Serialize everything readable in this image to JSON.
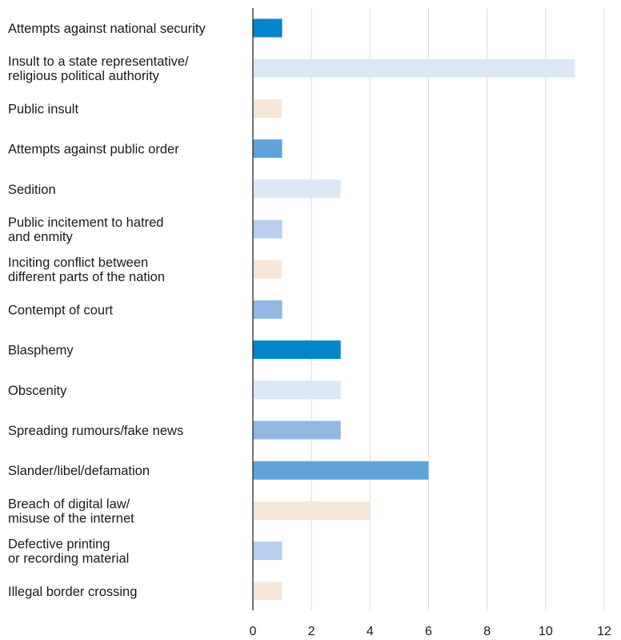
{
  "chart_data": {
    "type": "bar",
    "orientation": "horizontal",
    "title": "",
    "xlabel": "",
    "ylabel": "",
    "xlim": [
      0,
      12
    ],
    "x_ticks": [
      0,
      2,
      4,
      6,
      8,
      10,
      12
    ],
    "grid": true,
    "legend": "none",
    "categories": [
      [
        "Attempts against national security"
      ],
      [
        "Insult to a state representative/",
        "religious political authority"
      ],
      [
        "Public insult"
      ],
      [
        "Attempts against public order"
      ],
      [
        "Sedition"
      ],
      [
        "Public incitement to hatred",
        "and enmity"
      ],
      [
        "Inciting conflict between",
        "different parts of the nation"
      ],
      [
        "Contempt of court"
      ],
      [
        "Blasphemy"
      ],
      [
        "Obscenity"
      ],
      [
        "Spreading rumours/fake news"
      ],
      [
        "Slander/libel/defamation"
      ],
      [
        "Breach of digital law/",
        "misuse of the internet"
      ],
      [
        "Defective printing",
        "or recording material"
      ],
      [
        "Illegal border crossing"
      ]
    ],
    "values": [
      1,
      11,
      1,
      1,
      3,
      1,
      1,
      1,
      3,
      3,
      3,
      6,
      4,
      1,
      1
    ],
    "bar_colors": [
      "#0086c9",
      "#dde8f7",
      "#f6e7d8",
      "#5ea4d8",
      "#dde8f7",
      "#b8cfee",
      "#f6e7d8",
      "#8fb8e2",
      "#0086c9",
      "#dde8f7",
      "#8fb8e2",
      "#5ea4d8",
      "#f6e7d8",
      "#b8cfee",
      "#f6e7d8"
    ]
  }
}
